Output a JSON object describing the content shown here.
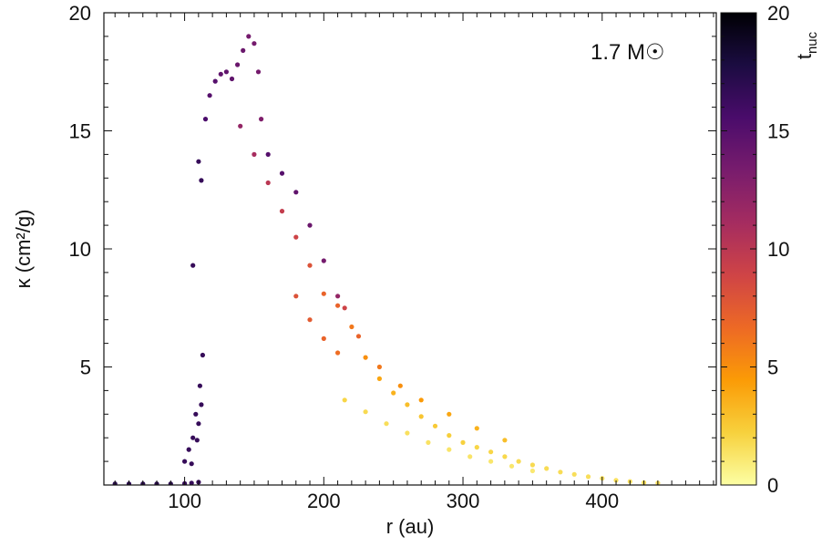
{
  "chart_data": {
    "type": "scatter",
    "title": "",
    "xlabel": "r (au)",
    "ylabel": "κ (cm²/g)",
    "annotation": "1.7 M☉",
    "xlim": [
      42,
      482
    ],
    "ylim": [
      0,
      20
    ],
    "xticks": [
      100,
      200,
      300,
      400
    ],
    "yticks": [
      5,
      10,
      15,
      20
    ],
    "grid": false,
    "colorbar": {
      "label": "t_nuc",
      "label_main": "t",
      "label_sub": "nuc",
      "range": [
        0,
        20
      ],
      "ticks": [
        0,
        5,
        10,
        15,
        20
      ],
      "colormap": "inferno_r",
      "stops": [
        "#fcffa4",
        "#f7d13d",
        "#fb9b06",
        "#ed6925",
        "#cf4446",
        "#a52c60",
        "#781c6d",
        "#4a0c6b",
        "#1b0c41",
        "#000004"
      ]
    },
    "series": [
      {
        "x": [
          50,
          60,
          70,
          80,
          90,
          100,
          105,
          110
        ],
        "y": [
          0.05,
          0.05,
          0.05,
          0.05,
          0.05,
          0.06,
          0.08,
          0.12
        ],
        "c": [
          17,
          17,
          17,
          17,
          17,
          16.5,
          16.5,
          16.5
        ]
      },
      {
        "x": [
          100,
          103,
          106,
          108,
          110,
          112,
          105,
          109,
          111,
          113
        ],
        "y": [
          1.0,
          1.5,
          2.0,
          3.0,
          2.6,
          3.4,
          0.9,
          1.9,
          4.2,
          5.5
        ],
        "c": [
          16.5,
          16.5,
          16.5,
          16.5,
          16.5,
          16.5,
          16.5,
          16.5,
          16.5,
          16.5
        ]
      },
      {
        "x": [
          106,
          110,
          112
        ],
        "y": [
          9.3,
          13.7,
          12.9
        ],
        "c": [
          16.5,
          16.5,
          16.5
        ]
      },
      {
        "x": [
          115,
          118,
          122,
          126,
          130,
          134,
          138,
          142,
          146,
          150,
          153,
          155
        ],
        "y": [
          15.5,
          16.5,
          17.1,
          17.4,
          17.5,
          17.2,
          17.8,
          18.4,
          19.0,
          18.7,
          17.5,
          15.5
        ],
        "c": [
          15.5,
          15.0,
          15.0,
          14.5,
          14.5,
          14.5,
          14.0,
          14.0,
          13.5,
          13.5,
          13.5,
          13.0
        ]
      },
      {
        "x": [
          140,
          150,
          160,
          170,
          180,
          190,
          200,
          210,
          220,
          230,
          240,
          250,
          260,
          270,
          280,
          290,
          300,
          310,
          320,
          330,
          340,
          350,
          360,
          370,
          380,
          390,
          400,
          410,
          420,
          430,
          440
        ],
        "y": [
          15.2,
          14.0,
          12.8,
          11.6,
          10.5,
          9.3,
          8.1,
          7.6,
          6.7,
          5.4,
          4.5,
          3.9,
          3.4,
          2.9,
          2.5,
          2.1,
          1.8,
          1.6,
          1.4,
          1.2,
          1.0,
          0.85,
          0.7,
          0.55,
          0.45,
          0.35,
          0.28,
          0.2,
          0.15,
          0.1,
          0.08
        ],
        "c": [
          12,
          11,
          10,
          9.5,
          9,
          8,
          7,
          7,
          6,
          5,
          4,
          3.5,
          3,
          2.7,
          2.5,
          2.3,
          2.2,
          2.0,
          2.0,
          1.9,
          1.8,
          1.8,
          1.7,
          1.7,
          1.6,
          1.6,
          1.5,
          1.5,
          1.5,
          1.5,
          1.5
        ]
      },
      {
        "x": [
          160,
          170,
          180,
          190,
          200,
          210,
          215,
          225,
          240,
          255,
          270,
          290,
          310,
          330
        ],
        "y": [
          14.0,
          13.2,
          12.4,
          11.0,
          9.5,
          8.0,
          7.5,
          6.3,
          5.0,
          4.2,
          3.6,
          3.0,
          2.4,
          1.9
        ],
        "c": [
          15,
          15,
          14.5,
          14,
          13.5,
          12,
          9,
          7,
          6,
          5,
          4.5,
          4,
          3.5,
          3
        ]
      },
      {
        "x": [
          215,
          230,
          245,
          260,
          275,
          290,
          305,
          320,
          335,
          350
        ],
        "y": [
          3.6,
          3.1,
          2.6,
          2.2,
          1.8,
          1.5,
          1.2,
          1.0,
          0.8,
          0.6
        ],
        "c": [
          2.0,
          1.8,
          1.6,
          1.5,
          1.4,
          1.3,
          1.3,
          1.2,
          1.2,
          1.1
        ]
      },
      {
        "x": [
          180,
          190,
          200,
          210
        ],
        "y": [
          8.0,
          7.0,
          6.2,
          5.6
        ],
        "c": [
          8.0,
          7.5,
          7.0,
          6.5
        ]
      }
    ]
  }
}
